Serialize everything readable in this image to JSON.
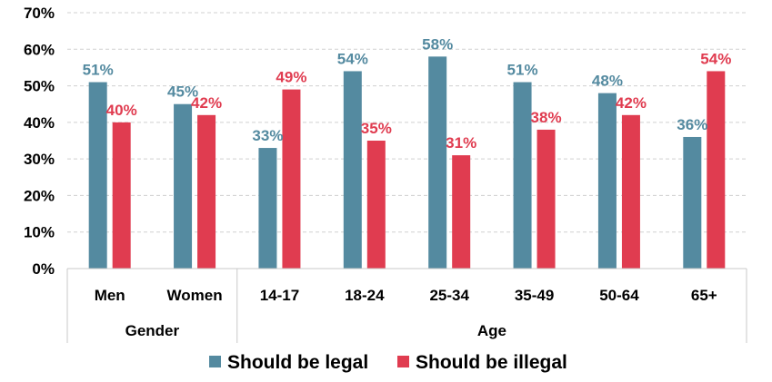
{
  "chart_data": {
    "type": "bar",
    "categories": [
      "Men",
      "Women",
      "14-17",
      "18-24",
      "25-34",
      "35-49",
      "50-64",
      "65+"
    ],
    "groups": [
      {
        "label": "Gender",
        "categories": [
          "Men",
          "Women"
        ]
      },
      {
        "label": "Age",
        "categories": [
          "14-17",
          "18-24",
          "25-34",
          "35-49",
          "50-64",
          "65+"
        ]
      }
    ],
    "series": [
      {
        "name": "Should be legal",
        "color": "#548aa0",
        "values": [
          51,
          45,
          33,
          54,
          58,
          51,
          48,
          36
        ],
        "labels": [
          "51%",
          "45%",
          "33%",
          "54%",
          "58%",
          "51%",
          "48%",
          "36%"
        ]
      },
      {
        "name": "Should be illegal",
        "color": "#e03c50",
        "values": [
          40,
          42,
          49,
          35,
          31,
          38,
          42,
          54
        ],
        "labels": [
          "40%",
          "42%",
          "49%",
          "35%",
          "31%",
          "38%",
          "42%",
          "54%"
        ]
      }
    ],
    "ylim": [
      0,
      70
    ],
    "yticks": [
      0,
      10,
      20,
      30,
      40,
      50,
      60,
      70
    ],
    "ytick_labels": [
      "0%",
      "10%",
      "20%",
      "30%",
      "40%",
      "50%",
      "60%",
      "70%"
    ],
    "grid": true,
    "legend_position": "bottom"
  }
}
